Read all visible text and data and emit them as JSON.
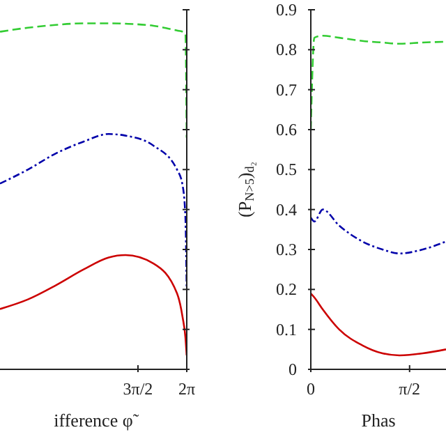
{
  "chart_data": [
    {
      "type": "line",
      "xlabel": "ifference φ̃",
      "x": [
        0.27,
        1.17,
        2.06,
        2.96,
        3.77,
        4.31,
        5.21,
        5.97,
        6.15,
        6.24,
        6.28
      ],
      "xlim": [
        0.27,
        6.2832
      ],
      "xticks": [
        {
          "value": 4.7124,
          "label": "3π/2"
        },
        {
          "value": 6.2832,
          "label": "2π"
        }
      ],
      "ylim": [
        0,
        0.9
      ],
      "yticks": [
        {
          "value": 0,
          "label": null
        },
        {
          "value": 0.1,
          "label": null
        },
        {
          "value": 0.2,
          "label": null
        },
        {
          "value": 0.3,
          "label": null
        },
        {
          "value": 0.4,
          "label": null
        },
        {
          "value": 0.5,
          "label": null
        },
        {
          "value": 0.6,
          "label": null
        },
        {
          "value": 0.7,
          "label": null
        },
        {
          "value": 0.8,
          "label": null
        },
        {
          "value": 0.9,
          "label": null
        }
      ],
      "tick_labels": "x",
      "grid": false,
      "legend": false,
      "series": [
        {
          "color": "#33cc33",
          "line_style": "dashed",
          "values": [
            0.845,
            0.855,
            0.862,
            0.866,
            0.866,
            0.865,
            0.86,
            0.848,
            0.845,
            0.84,
            0.58
          ]
        },
        {
          "color": "#0000aa",
          "line_style": "dotted",
          "values": [
            0.465,
            0.5,
            0.54,
            0.57,
            0.589,
            0.585,
            0.56,
            0.5,
            0.46,
            0.38,
            0.2
          ]
        },
        {
          "color": "#cc0000",
          "line_style": "solid",
          "values": [
            0.151,
            0.175,
            0.21,
            0.25,
            0.28,
            0.286,
            0.265,
            0.19,
            0.13,
            0.08,
            0.035
          ]
        }
      ]
    },
    {
      "type": "line",
      "xlabel": "Phas",
      "ylabel": "(P$_{N>5}$)$_{d₂}$",
      "x": [
        0,
        0.056,
        0.19,
        0.45,
        0.82,
        1.14,
        1.41,
        1.78,
        2.15
      ],
      "xlim": [
        0,
        2.15
      ],
      "xticks": [
        0,
        {
          "value": 1.5708,
          "label": "π/2"
        }
      ],
      "ylim": [
        0,
        0.9
      ],
      "yticks": [
        0,
        0.1,
        0.2,
        0.3,
        0.4,
        0.5,
        0.6,
        0.7,
        0.8,
        0.9
      ],
      "grid": false,
      "legend": false,
      "series": [
        {
          "color": "#33cc33",
          "line_style": "dashed",
          "values": [
            0.6,
            0.83,
            0.835,
            0.83,
            0.822,
            0.818,
            0.815,
            0.818,
            0.82
          ]
        },
        {
          "color": "#0000aa",
          "line_style": "dotted",
          "values": [
            0.38,
            0.37,
            0.4,
            0.36,
            0.32,
            0.3,
            0.29,
            0.3,
            0.32
          ]
        },
        {
          "color": "#cc0000",
          "line_style": "solid",
          "values": [
            0.19,
            0.18,
            0.15,
            0.1,
            0.06,
            0.04,
            0.035,
            0.04,
            0.05
          ]
        }
      ]
    }
  ]
}
